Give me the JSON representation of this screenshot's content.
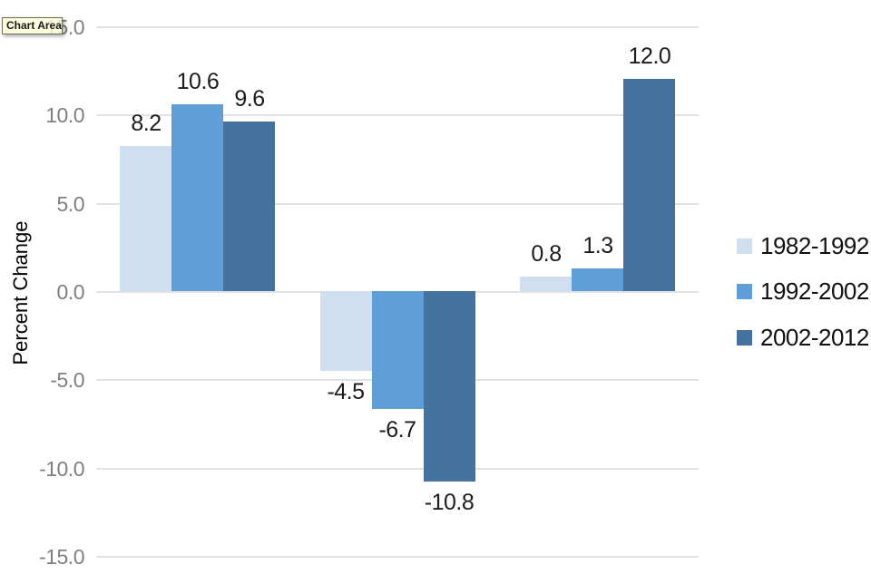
{
  "tooltip": {
    "label": "Chart Area"
  },
  "chart_data": {
    "type": "bar",
    "title": "",
    "xlabel": "",
    "ylabel": "Percent Change",
    "categories": [
      "",
      "",
      ""
    ],
    "series": [
      {
        "name": "1982-1992",
        "color": "#cfdff0",
        "values": [
          8.2,
          -4.5,
          0.8
        ]
      },
      {
        "name": "1992-2002",
        "color": "#5f9ed8",
        "values": [
          10.6,
          -6.7,
          1.3
        ]
      },
      {
        "name": "2002-2012",
        "color": "#43739e",
        "values": [
          9.6,
          -10.8,
          12.0
        ]
      }
    ],
    "yticks": [
      15.0,
      10.0,
      5.0,
      0.0,
      -5.0,
      -10.0,
      -15.0
    ],
    "ylim": [
      -15.0,
      15.0
    ],
    "grid": true,
    "data_labels": true,
    "legend_position": "right",
    "text_colors": {
      "tick_labels": "#7f7f7f",
      "data_labels": "#1c1c1c",
      "legend": "#111111",
      "axis_title": "#000000"
    }
  }
}
